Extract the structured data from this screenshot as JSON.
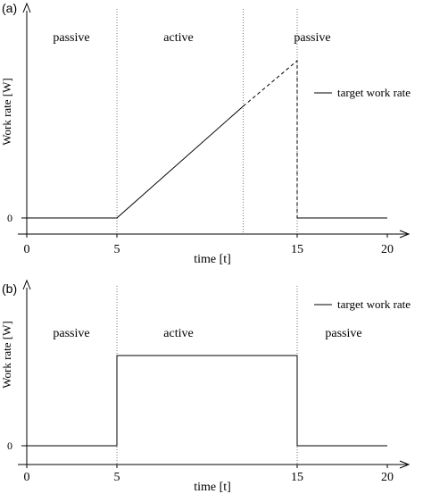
{
  "chart_data": [
    {
      "panel_label": "(a)",
      "type": "line",
      "xlabel": "time [t]",
      "ylabel": "Work rate [W]",
      "xlim": [
        0,
        20
      ],
      "xticks": [
        "0",
        "5",
        "15",
        "20"
      ],
      "yticks": [
        "0"
      ],
      "legend": {
        "label": "target work rate",
        "placement": "right"
      },
      "phases": [
        "passive",
        "active",
        "passive"
      ],
      "phase_boundaries": [
        5,
        12,
        15
      ],
      "series": [
        {
          "segments": [
            {
              "style": "solid",
              "points": [
                [
                  0,
                  0
                ],
                [
                  5,
                  0
                ],
                [
                  12,
                  0.71
                ]
              ]
            },
            {
              "style": "dashed",
              "points": [
                [
                  12,
                  0.71
                ],
                [
                  15,
                  1.0
                ],
                [
                  15,
                  0
                ]
              ]
            },
            {
              "style": "solid",
              "points": [
                [
                  15,
                  0
                ],
                [
                  20,
                  0
                ]
              ]
            }
          ]
        }
      ]
    },
    {
      "panel_label": "(b)",
      "type": "line",
      "xlabel": "time [t]",
      "ylabel": "Work rate [W]",
      "xlim": [
        0,
        20
      ],
      "xticks": [
        "0",
        "5",
        "15",
        "20"
      ],
      "yticks": [
        "0"
      ],
      "legend": {
        "label": "target work rate",
        "placement": "top-right"
      },
      "phases": [
        "passive",
        "active",
        "passive"
      ],
      "phase_boundaries": [
        5,
        15
      ],
      "series": [
        {
          "segments": [
            {
              "style": "solid",
              "points": [
                [
                  0,
                  0
                ],
                [
                  5,
                  0
                ],
                [
                  5,
                  1
                ],
                [
                  15,
                  1
                ],
                [
                  15,
                  0
                ],
                [
                  20,
                  0
                ]
              ]
            }
          ]
        }
      ]
    }
  ]
}
